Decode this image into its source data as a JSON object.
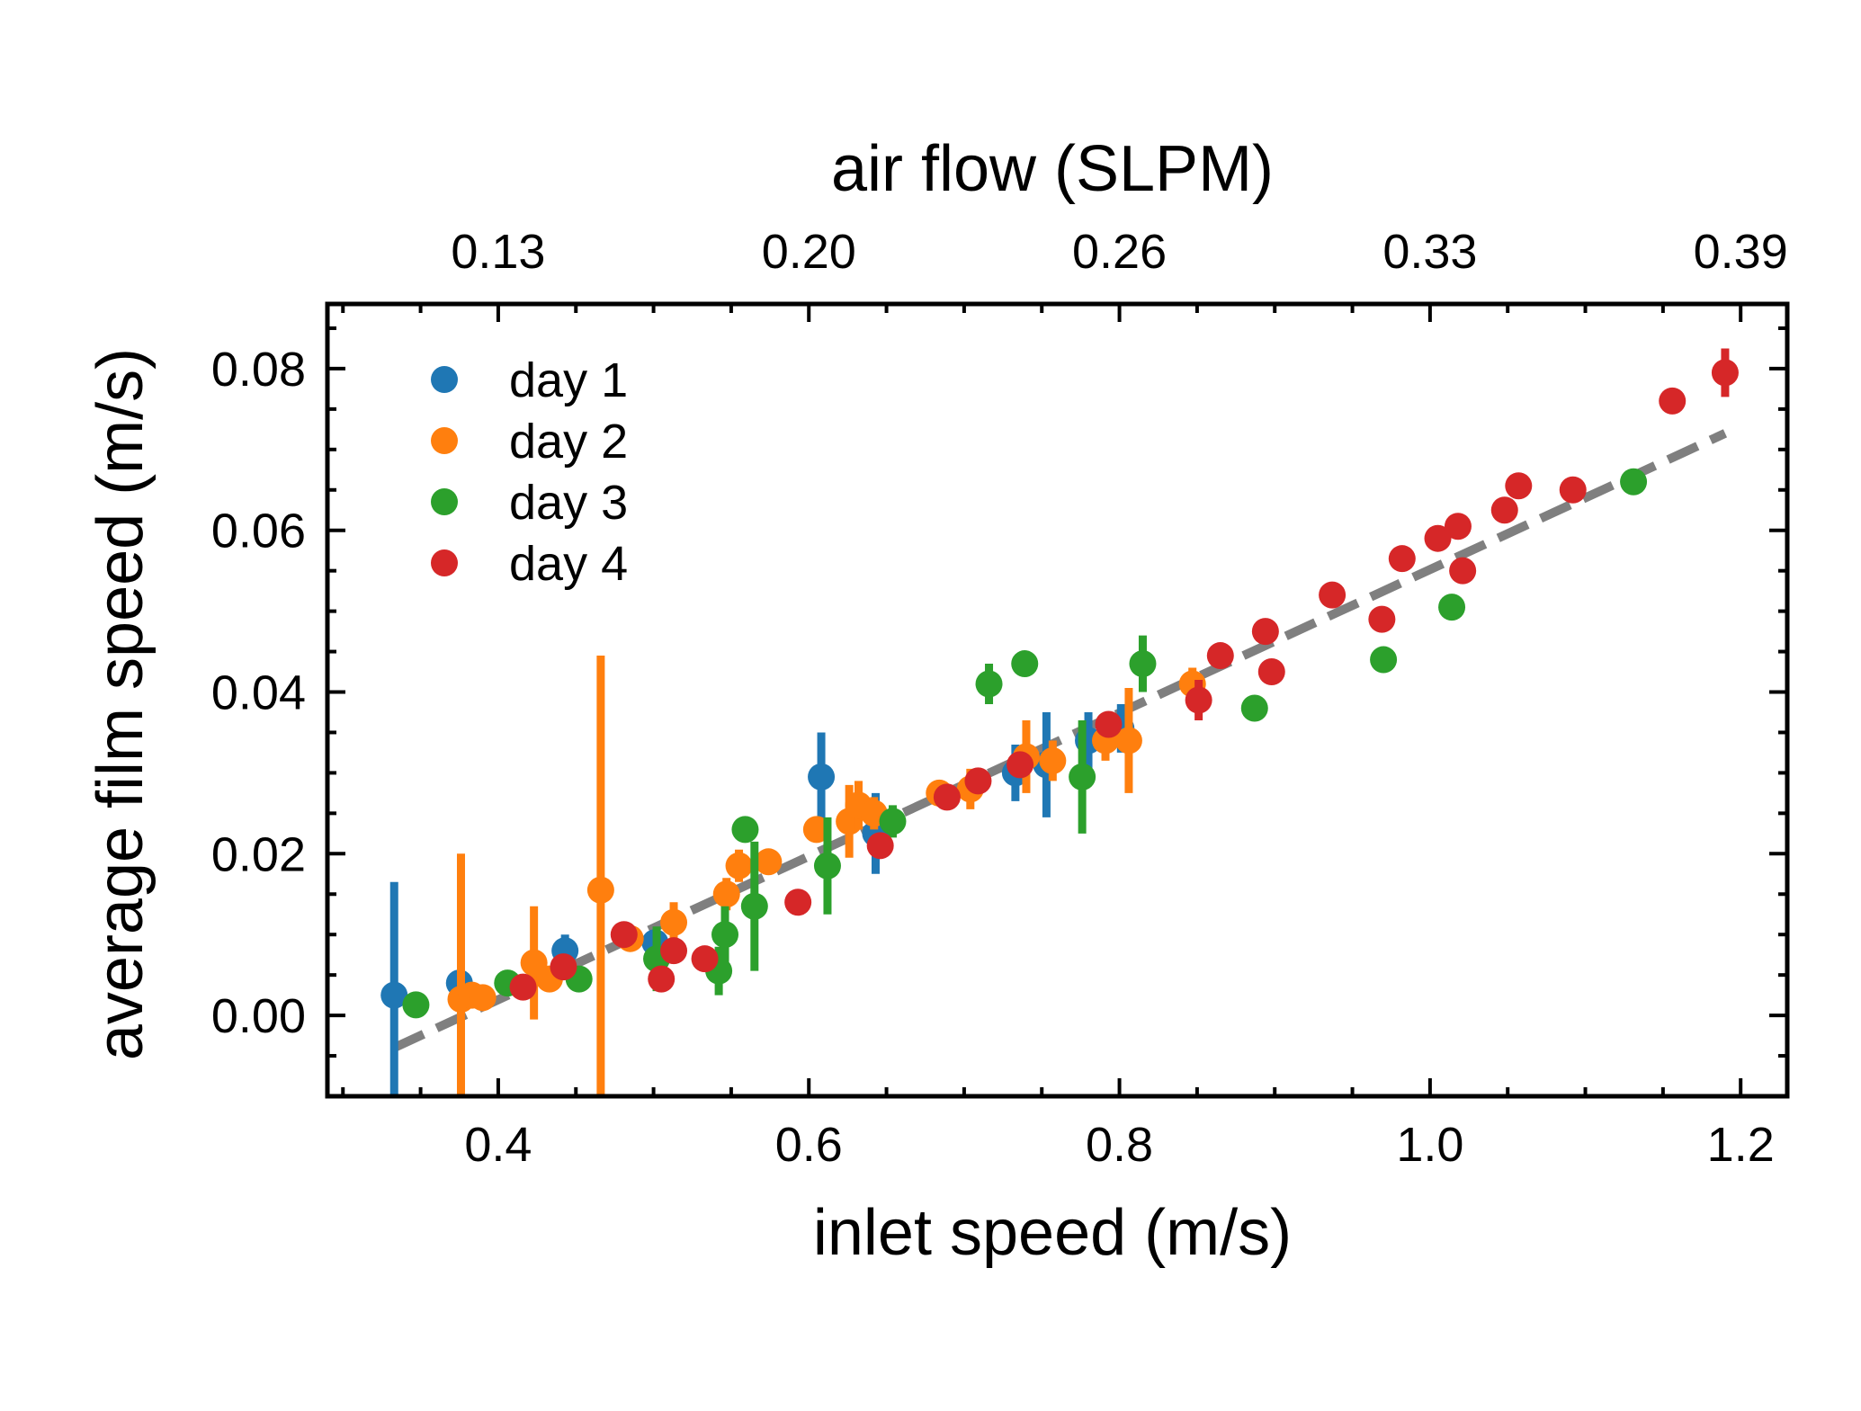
{
  "chart_data": {
    "type": "scatter",
    "xlabel": "inlet speed (m/s)",
    "ylabel": "average film speed (m/s)",
    "x2label": "air flow (SLPM)",
    "xlim": [
      0.29,
      1.23
    ],
    "ylim": [
      -0.01,
      0.088
    ],
    "xticks": [
      0.4,
      0.6,
      0.8,
      1.0,
      1.2
    ],
    "xtick_labels": [
      "0.4",
      "0.6",
      "0.8",
      "1.0",
      "1.2"
    ],
    "yticks": [
      0.0,
      0.02,
      0.04,
      0.06,
      0.08
    ],
    "ytick_labels": [
      "0.00",
      "0.02",
      "0.04",
      "0.06",
      "0.08"
    ],
    "x2ticks": [
      0.4,
      0.6,
      0.8,
      1.0,
      1.2
    ],
    "x2tick_labels": [
      "0.13",
      "0.20",
      "0.26",
      "0.33",
      "0.39"
    ],
    "grid": false,
    "legend_position": "top-left",
    "fit_line": {
      "style": "dashed",
      "color": "#7f7f7f",
      "x": [
        0.333,
        1.19
      ],
      "y": [
        -0.004,
        0.072
      ]
    },
    "series": [
      {
        "name": "day 1",
        "color": "#1f77b4",
        "points": [
          {
            "x": 0.333,
            "y": 0.0025,
            "err": 0.014
          },
          {
            "x": 0.375,
            "y": 0.004,
            "err": 0.001
          },
          {
            "x": 0.443,
            "y": 0.008,
            "err": 0.002
          },
          {
            "x": 0.501,
            "y": 0.009,
            "err": 0.001
          },
          {
            "x": 0.608,
            "y": 0.0295,
            "err": 0.0055
          },
          {
            "x": 0.643,
            "y": 0.0225,
            "err": 0.005
          },
          {
            "x": 0.733,
            "y": 0.03,
            "err": 0.0035
          },
          {
            "x": 0.753,
            "y": 0.031,
            "err": 0.0065
          },
          {
            "x": 0.78,
            "y": 0.034,
            "err": 0.0035
          },
          {
            "x": 0.801,
            "y": 0.0355,
            "err": 0.003
          }
        ]
      },
      {
        "name": "day 2",
        "color": "#ff7f0e",
        "points": [
          {
            "x": 0.376,
            "y": 0.002,
            "err": 0.018
          },
          {
            "x": 0.383,
            "y": 0.0025,
            "err": 0.001
          },
          {
            "x": 0.39,
            "y": 0.0022,
            "err": 0.001
          },
          {
            "x": 0.423,
            "y": 0.0065,
            "err": 0.007
          },
          {
            "x": 0.433,
            "y": 0.0045,
            "err": 0.001
          },
          {
            "x": 0.466,
            "y": 0.0155,
            "err": 0.029
          },
          {
            "x": 0.485,
            "y": 0.0095,
            "err": 0.001
          },
          {
            "x": 0.513,
            "y": 0.0115,
            "err": 0.0025
          },
          {
            "x": 0.547,
            "y": 0.015,
            "err": 0.002
          },
          {
            "x": 0.555,
            "y": 0.0185,
            "err": 0.002
          },
          {
            "x": 0.574,
            "y": 0.019,
            "err": 0.001
          },
          {
            "x": 0.605,
            "y": 0.023,
            "err": 0.001
          },
          {
            "x": 0.626,
            "y": 0.024,
            "err": 0.0045
          },
          {
            "x": 0.632,
            "y": 0.026,
            "err": 0.003
          },
          {
            "x": 0.642,
            "y": 0.025,
            "err": 0.002
          },
          {
            "x": 0.684,
            "y": 0.0275,
            "err": 0.001
          },
          {
            "x": 0.704,
            "y": 0.028,
            "err": 0.0025
          },
          {
            "x": 0.74,
            "y": 0.032,
            "err": 0.0045
          },
          {
            "x": 0.757,
            "y": 0.0315,
            "err": 0.0025
          },
          {
            "x": 0.791,
            "y": 0.034,
            "err": 0.0025
          },
          {
            "x": 0.806,
            "y": 0.034,
            "err": 0.0065
          },
          {
            "x": 0.847,
            "y": 0.041,
            "err": 0.002
          }
        ]
      },
      {
        "name": "day 3",
        "color": "#2ca02c",
        "points": [
          {
            "x": 0.347,
            "y": 0.0013,
            "err": 0.001
          },
          {
            "x": 0.406,
            "y": 0.004,
            "err": 0.001
          },
          {
            "x": 0.452,
            "y": 0.0045,
            "err": 0.001
          },
          {
            "x": 0.502,
            "y": 0.007,
            "err": 0.004
          },
          {
            "x": 0.542,
            "y": 0.0055,
            "err": 0.003
          },
          {
            "x": 0.546,
            "y": 0.01,
            "err": 0.0035
          },
          {
            "x": 0.559,
            "y": 0.023,
            "err": 0.001
          },
          {
            "x": 0.565,
            "y": 0.0135,
            "err": 0.008
          },
          {
            "x": 0.612,
            "y": 0.0185,
            "err": 0.006
          },
          {
            "x": 0.654,
            "y": 0.024,
            "err": 0.002
          },
          {
            "x": 0.716,
            "y": 0.041,
            "err": 0.0025
          },
          {
            "x": 0.739,
            "y": 0.0435,
            "err": 0.001
          },
          {
            "x": 0.776,
            "y": 0.0295,
            "err": 0.007
          },
          {
            "x": 0.815,
            "y": 0.0435,
            "err": 0.0035
          },
          {
            "x": 0.887,
            "y": 0.038,
            "err": 0.001
          },
          {
            "x": 0.97,
            "y": 0.044,
            "err": 0.001
          },
          {
            "x": 1.014,
            "y": 0.0505,
            "err": 0.001
          },
          {
            "x": 1.131,
            "y": 0.066,
            "err": 0.001
          }
        ]
      },
      {
        "name": "day 4",
        "color": "#d62728",
        "points": [
          {
            "x": 0.416,
            "y": 0.0035,
            "err": 0.001
          },
          {
            "x": 0.442,
            "y": 0.006,
            "err": 0.001
          },
          {
            "x": 0.481,
            "y": 0.01,
            "err": 0.001
          },
          {
            "x": 0.505,
            "y": 0.0045,
            "err": 0.001
          },
          {
            "x": 0.513,
            "y": 0.008,
            "err": 0.001
          },
          {
            "x": 0.533,
            "y": 0.007,
            "err": 0.001
          },
          {
            "x": 0.593,
            "y": 0.014,
            "err": 0.001
          },
          {
            "x": 0.646,
            "y": 0.021,
            "err": 0.001
          },
          {
            "x": 0.689,
            "y": 0.027,
            "err": 0.001
          },
          {
            "x": 0.709,
            "y": 0.029,
            "err": 0.001
          },
          {
            "x": 0.736,
            "y": 0.031,
            "err": 0.001
          },
          {
            "x": 0.793,
            "y": 0.036,
            "err": 0.001
          },
          {
            "x": 0.851,
            "y": 0.039,
            "err": 0.0025
          },
          {
            "x": 0.865,
            "y": 0.0445,
            "err": 0.001
          },
          {
            "x": 0.894,
            "y": 0.0475,
            "err": 0.001
          },
          {
            "x": 0.898,
            "y": 0.0425,
            "err": 0.001
          },
          {
            "x": 0.937,
            "y": 0.052,
            "err": 0.001
          },
          {
            "x": 0.969,
            "y": 0.049,
            "err": 0.001
          },
          {
            "x": 0.982,
            "y": 0.0565,
            "err": 0.001
          },
          {
            "x": 1.005,
            "y": 0.059,
            "err": 0.001
          },
          {
            "x": 1.018,
            "y": 0.0605,
            "err": 0.001
          },
          {
            "x": 1.021,
            "y": 0.055,
            "err": 0.001
          },
          {
            "x": 1.048,
            "y": 0.0625,
            "err": 0.001
          },
          {
            "x": 1.057,
            "y": 0.0655,
            "err": 0.001
          },
          {
            "x": 1.092,
            "y": 0.065,
            "err": 0.001
          },
          {
            "x": 1.156,
            "y": 0.076,
            "err": 0.001
          },
          {
            "x": 1.19,
            "y": 0.0795,
            "err": 0.003
          }
        ]
      }
    ]
  }
}
